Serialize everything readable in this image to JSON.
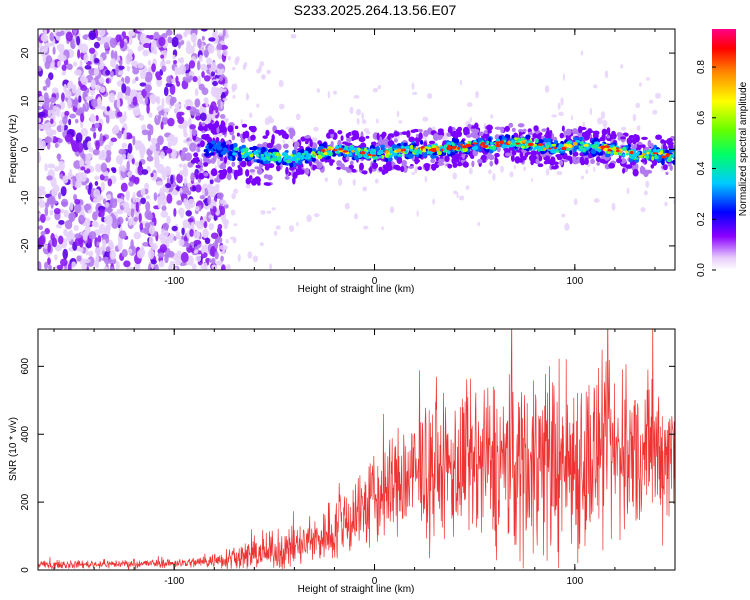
{
  "title": "S233.2025.264.13.56.E07",
  "colors": {
    "snr_line": "#ee3333",
    "ridge_low": "#7a00ff",
    "ridge_high": "#ff0000"
  },
  "chart_data": [
    {
      "type": "heatmap",
      "panel": "spectrogram",
      "xlabel": "Height of straight line (km)",
      "ylabel": "Frequency (Hz)",
      "xlim": [
        -168,
        150
      ],
      "ylim": [
        -25,
        25
      ],
      "xticks": [
        -100,
        0,
        100
      ],
      "yticks": [
        -20,
        -10,
        0,
        10,
        20
      ],
      "grid": false,
      "noise_region_upper_km": -80,
      "ridge": {
        "x": [
          -80,
          -60,
          -40,
          -30,
          -20,
          -10,
          0,
          10,
          20,
          30,
          40,
          50,
          60,
          70,
          80,
          90,
          100,
          110,
          120,
          130,
          140,
          150
        ],
        "freq": [
          0,
          -1,
          -2,
          -1,
          0,
          -0.5,
          -1,
          -0.5,
          0,
          0,
          0.5,
          1,
          1,
          1.5,
          1,
          0,
          1,
          0.5,
          0,
          -1,
          -1,
          -1.5
        ]
      },
      "colorbar": {
        "label": "Normalized spectral amplitude",
        "range": [
          0,
          0.95
        ],
        "ticks": [
          0.0,
          0.2,
          0.4,
          0.6,
          0.8
        ]
      }
    },
    {
      "type": "line",
      "panel": "snr",
      "xlabel": "Height of straight line (km)",
      "ylabel": "SNR (10 * v/v)",
      "xlim": [
        -168,
        150
      ],
      "ylim": [
        0,
        710
      ],
      "xticks": [
        -100,
        0,
        100
      ],
      "yticks": [
        0,
        200,
        400,
        600
      ],
      "grid": false,
      "series": [
        {
          "name": "SNR",
          "envelope": {
            "x": [
              -168,
              -100,
              -90,
              -80,
              -70,
              -60,
              -50,
              -40,
              -30,
              -20,
              -10,
              0,
              10,
              20,
              30,
              40,
              50,
              60,
              70,
              80,
              90,
              100,
              110,
              120,
              130,
              140,
              150
            ],
            "mean": [
              15,
              20,
              22,
              28,
              40,
              45,
              55,
              65,
              85,
              120,
              165,
              205,
              250,
              275,
              290,
              300,
              305,
              310,
              315,
              320,
              320,
              325,
              330,
              335,
              340,
              345,
              350
            ],
            "spread": [
              12,
              15,
              18,
              25,
              45,
              50,
              60,
              70,
              80,
              110,
              140,
              160,
              180,
              200,
              220,
              240,
              260,
              280,
              300,
              320,
              320,
              320,
              300,
              280,
              260,
              250,
              240
            ]
          }
        }
      ]
    }
  ]
}
